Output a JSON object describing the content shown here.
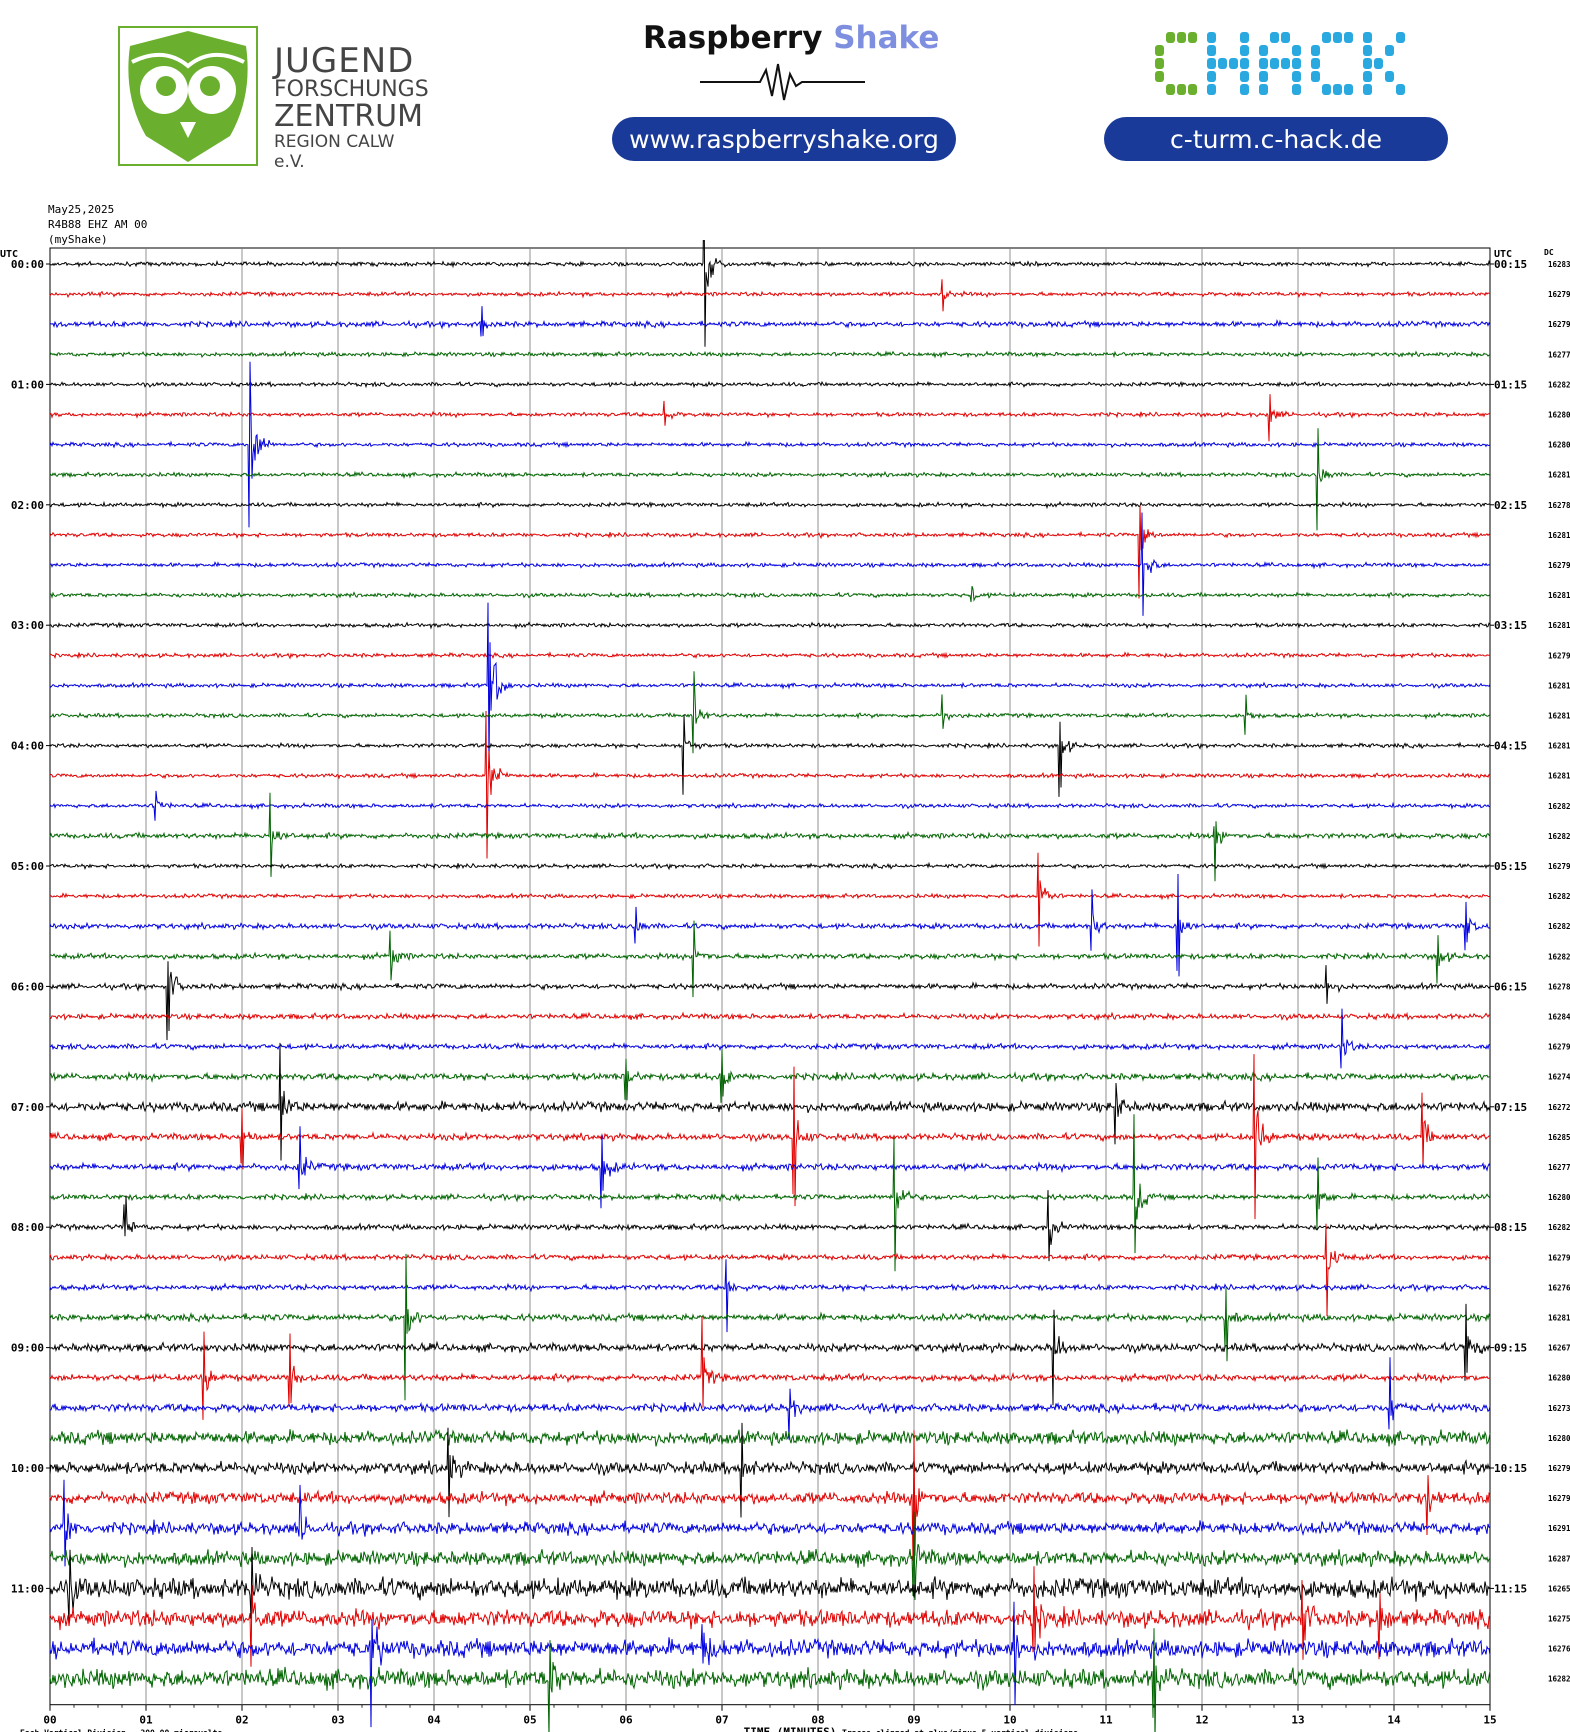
{
  "header": {
    "jfz": {
      "line1": "JUGEND",
      "line2": "FORSCHUNGS",
      "line3": "ZENTRUM",
      "line4": "REGION CALW e.V.",
      "color": "#6ab02e"
    },
    "rs_title_a": "Raspberry",
    "rs_title_b": "Shake",
    "rs_url": "www.raspberryshake.org",
    "chack_logo": "CHACK",
    "chack_url": "c-turm.c-hack.de",
    "pill_color": "#1a3a9a"
  },
  "meta": {
    "date": "May25,2025",
    "station": "R4B88 EHZ AM 00",
    "source": "(myShake)"
  },
  "labels": {
    "utc": "UTC",
    "dc": "DC",
    "xlabel": "TIME (MINUTES)",
    "scale_note": "Each Vertical Division = 200.00 microvolts",
    "clip_note": "Traces clipped at plus/minus 5 vertical divisions"
  },
  "chart_data": {
    "type": "line",
    "title": "",
    "xlabel": "TIME (MINUTES)",
    "xlim": [
      0,
      15
    ],
    "x_ticks": [
      "00",
      "01",
      "02",
      "03",
      "04",
      "05",
      "06",
      "07",
      "08",
      "09",
      "10",
      "11",
      "12",
      "13",
      "14",
      "15"
    ],
    "trace_colors": [
      "#000000",
      "#e00000",
      "#0000e0",
      "#006400"
    ],
    "left_time_labels": [
      "00:00",
      "01:00",
      "02:00",
      "03:00",
      "04:00",
      "05:00",
      "06:00",
      "07:00",
      "08:00",
      "09:00",
      "10:00",
      "11:00"
    ],
    "right_time_labels": [
      "00:15",
      "01:15",
      "02:15",
      "03:15",
      "04:15",
      "05:15",
      "06:15",
      "07:15",
      "08:15",
      "09:15",
      "10:15",
      "11:15"
    ],
    "dc_values": [
      16283,
      16279,
      16279,
      16277,
      16282,
      16280,
      16280,
      16281,
      16278,
      16281,
      16279,
      16281,
      16281,
      16279,
      16281,
      16281,
      16281,
      16281,
      16282,
      16282,
      16279,
      16282,
      16282,
      16282,
      16278,
      16284,
      16279,
      16274,
      16272,
      16285,
      16277,
      16280,
      16282,
      16279,
      16276,
      16281,
      16267,
      16280,
      16273,
      16280,
      16279,
      16279,
      16291,
      16287,
      16265,
      16275,
      16276,
      16282
    ],
    "events": [
      {
        "row": 0,
        "minute": 6.82,
        "amp": 5
      },
      {
        "row": 1,
        "minute": 9.3,
        "amp": 0.4
      },
      {
        "row": 2,
        "minute": 4.5,
        "amp": 0.5
      },
      {
        "row": 5,
        "minute": 12.7,
        "amp": 0.7
      },
      {
        "row": 5,
        "minute": 6.4,
        "amp": 0.4
      },
      {
        "row": 6,
        "minute": 2.08,
        "amp": 5
      },
      {
        "row": 7,
        "minute": 13.2,
        "amp": 1.5
      },
      {
        "row": 9,
        "minute": 11.35,
        "amp": 1.6
      },
      {
        "row": 10,
        "minute": 11.38,
        "amp": 2
      },
      {
        "row": 11,
        "minute": 9.6,
        "amp": 0.4
      },
      {
        "row": 14,
        "minute": 4.57,
        "amp": 5
      },
      {
        "row": 15,
        "minute": 6.7,
        "amp": 1.5
      },
      {
        "row": 15,
        "minute": 9.3,
        "amp": 0.5
      },
      {
        "row": 15,
        "minute": 12.45,
        "amp": 0.5
      },
      {
        "row": 16,
        "minute": 6.6,
        "amp": 1.3
      },
      {
        "row": 16,
        "minute": 10.52,
        "amp": 1.3
      },
      {
        "row": 17,
        "minute": 4.55,
        "amp": 4
      },
      {
        "row": 18,
        "minute": 1.1,
        "amp": 0.6
      },
      {
        "row": 19,
        "minute": 2.3,
        "amp": 1.2
      },
      {
        "row": 19,
        "minute": 12.13,
        "amp": 1.5
      },
      {
        "row": 21,
        "minute": 10.3,
        "amp": 1.7
      },
      {
        "row": 22,
        "minute": 11.75,
        "amp": 1.5
      },
      {
        "row": 22,
        "minute": 10.85,
        "amp": 1
      },
      {
        "row": 22,
        "minute": 14.75,
        "amp": 0.8
      },
      {
        "row": 22,
        "minute": 6.1,
        "amp": 0.6
      },
      {
        "row": 23,
        "minute": 6.7,
        "amp": 1.2
      },
      {
        "row": 23,
        "minute": 3.55,
        "amp": 1
      },
      {
        "row": 23,
        "minute": 14.45,
        "amp": 1
      },
      {
        "row": 24,
        "minute": 1.23,
        "amp": 1.8
      },
      {
        "row": 24,
        "minute": 13.3,
        "amp": 0.6
      },
      {
        "row": 26,
        "minute": 13.45,
        "amp": 1
      },
      {
        "row": 27,
        "minute": 7.0,
        "amp": 0.8
      },
      {
        "row": 27,
        "minute": 6.0,
        "amp": 0.7
      },
      {
        "row": 28,
        "minute": 11.1,
        "amp": 1
      },
      {
        "row": 28,
        "minute": 2.4,
        "amp": 1.8
      },
      {
        "row": 29,
        "minute": 7.75,
        "amp": 2
      },
      {
        "row": 29,
        "minute": 12.55,
        "amp": 3
      },
      {
        "row": 29,
        "minute": 14.3,
        "amp": 1.1
      },
      {
        "row": 29,
        "minute": 2.0,
        "amp": 0.8
      },
      {
        "row": 30,
        "minute": 5.75,
        "amp": 1.4
      },
      {
        "row": 30,
        "minute": 2.6,
        "amp": 1.2
      },
      {
        "row": 31,
        "minute": 8.8,
        "amp": 2.2
      },
      {
        "row": 31,
        "minute": 11.3,
        "amp": 2.2
      },
      {
        "row": 31,
        "minute": 13.2,
        "amp": 1.3
      },
      {
        "row": 32,
        "minute": 0.78,
        "amp": 1
      },
      {
        "row": 32,
        "minute": 10.4,
        "amp": 1.2
      },
      {
        "row": 33,
        "minute": 13.3,
        "amp": 1.8
      },
      {
        "row": 34,
        "minute": 7.05,
        "amp": 1
      },
      {
        "row": 35,
        "minute": 12.25,
        "amp": 1
      },
      {
        "row": 35,
        "minute": 3.7,
        "amp": 2.2
      },
      {
        "row": 36,
        "minute": 10.45,
        "amp": 1.6
      },
      {
        "row": 36,
        "minute": 14.75,
        "amp": 1.2
      },
      {
        "row": 37,
        "minute": 1.6,
        "amp": 1.4
      },
      {
        "row": 37,
        "minute": 2.5,
        "amp": 1
      },
      {
        "row": 37,
        "minute": 6.8,
        "amp": 1.3
      },
      {
        "row": 38,
        "minute": 7.7,
        "amp": 0.8
      },
      {
        "row": 38,
        "minute": 13.95,
        "amp": 1.5
      },
      {
        "row": 40,
        "minute": 4.15,
        "amp": 1.2
      },
      {
        "row": 40,
        "minute": 7.2,
        "amp": 1.2
      },
      {
        "row": 41,
        "minute": 9.0,
        "amp": 2
      },
      {
        "row": 41,
        "minute": 14.35,
        "amp": 1
      },
      {
        "row": 42,
        "minute": 0.15,
        "amp": 1.5
      },
      {
        "row": 42,
        "minute": 2.6,
        "amp": 1.2
      },
      {
        "row": 43,
        "minute": 9.0,
        "amp": 1.2
      },
      {
        "row": 44,
        "minute": 0.2,
        "amp": 0.9
      },
      {
        "row": 44,
        "minute": 2.1,
        "amp": 1.2
      },
      {
        "row": 45,
        "minute": 2.1,
        "amp": 1.4
      },
      {
        "row": 45,
        "minute": 10.25,
        "amp": 1.4
      },
      {
        "row": 45,
        "minute": 13.05,
        "amp": 1.4
      },
      {
        "row": 45,
        "minute": 13.85,
        "amp": 1.4
      },
      {
        "row": 46,
        "minute": 3.35,
        "amp": 2.2
      },
      {
        "row": 46,
        "minute": 6.8,
        "amp": 1.2
      },
      {
        "row": 46,
        "minute": 10.05,
        "amp": 1.2
      },
      {
        "row": 47,
        "minute": 5.2,
        "amp": 1.4
      },
      {
        "row": 47,
        "minute": 11.5,
        "amp": 1.4
      }
    ],
    "noise_levels": [
      0.06,
      0.06,
      0.08,
      0.06,
      0.06,
      0.06,
      0.06,
      0.06,
      0.06,
      0.06,
      0.06,
      0.06,
      0.06,
      0.06,
      0.06,
      0.06,
      0.06,
      0.06,
      0.06,
      0.08,
      0.06,
      0.06,
      0.08,
      0.08,
      0.08,
      0.08,
      0.08,
      0.1,
      0.14,
      0.1,
      0.1,
      0.08,
      0.08,
      0.08,
      0.08,
      0.1,
      0.12,
      0.1,
      0.12,
      0.2,
      0.18,
      0.18,
      0.18,
      0.22,
      0.3,
      0.26,
      0.26,
      0.28
    ]
  }
}
